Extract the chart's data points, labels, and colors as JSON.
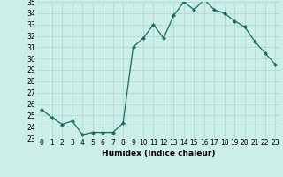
{
  "x": [
    0,
    1,
    2,
    3,
    4,
    5,
    6,
    7,
    8,
    9,
    10,
    11,
    12,
    13,
    14,
    15,
    16,
    17,
    18,
    19,
    20,
    21,
    22,
    23
  ],
  "y": [
    25.5,
    24.8,
    24.2,
    24.5,
    23.3,
    23.5,
    23.5,
    23.5,
    24.3,
    31.0,
    31.8,
    33.0,
    31.8,
    33.8,
    35.0,
    34.3,
    35.2,
    34.3,
    34.0,
    33.3,
    32.8,
    31.5,
    30.5,
    29.5
  ],
  "ylim": [
    23,
    35
  ],
  "yticks": [
    23,
    24,
    25,
    26,
    27,
    28,
    29,
    30,
    31,
    32,
    33,
    34,
    35
  ],
  "xticks": [
    0,
    1,
    2,
    3,
    4,
    5,
    6,
    7,
    8,
    9,
    10,
    11,
    12,
    13,
    14,
    15,
    16,
    17,
    18,
    19,
    20,
    21,
    22,
    23
  ],
  "xlabel": "Humidex (Indice chaleur)",
  "line_color": "#1a6b5a",
  "marker": "D",
  "marker_size": 2.0,
  "bg_color": "#cceee8",
  "grid_color": "#aad4ce",
  "tick_fontsize": 5.5,
  "xlabel_fontsize": 6.5
}
